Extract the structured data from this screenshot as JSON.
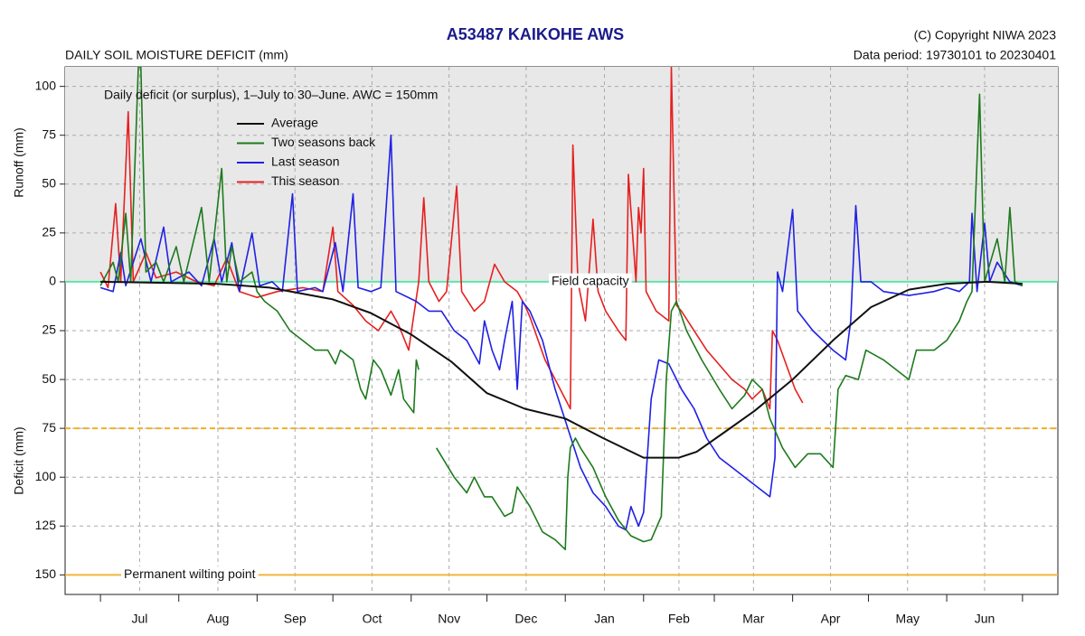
{
  "chart_data": {
    "type": "line",
    "title": "A53487  KAIKOHE AWS",
    "subtitle": "DAILY SOIL MOISTURE DEFICIT (mm)",
    "copyright": "(C) Copyright NIWA  2023",
    "data_period": "Data period:  19730101  to  20230401",
    "annotation": "Daily deficit (or surplus), 1–July to 30–June.  AWC = 150mm",
    "y_label_top": "Runoff (mm)",
    "y_label_bottom": "Deficit (mm)",
    "categories": [
      "Jul",
      "Aug",
      "Sep",
      "Oct",
      "Nov",
      "Dec",
      "Jan",
      "Feb",
      "Mar",
      "Apr",
      "May",
      "Jun"
    ],
    "xticks": [
      0,
      31,
      62,
      92,
      123,
      153,
      184,
      215,
      243,
      274,
      304,
      335,
      365
    ],
    "xlim": [
      -14,
      379
    ],
    "ylim": [
      -160,
      110
    ],
    "yticks": [
      100,
      75,
      50,
      25,
      0,
      {
        "value": -25,
        "label": "25"
      },
      {
        "value": -50,
        "label": "50"
      },
      {
        "value": -75,
        "label": "75"
      },
      {
        "value": -100,
        "label": "100"
      },
      {
        "value": -125,
        "label": "125"
      },
      {
        "value": -150,
        "label": "150"
      }
    ],
    "grid": true,
    "reference_lines": [
      {
        "value": 0,
        "label": "Field capacity",
        "color": "#5ee6a8"
      },
      {
        "value": -75,
        "color": "#f0b020",
        "dashed": true
      },
      {
        "value": -150,
        "label": "Permanent wilting point",
        "color": "#f2b53a"
      }
    ],
    "series": [
      {
        "name": "Average",
        "color": "#111111",
        "x": [
          0,
          46,
          67,
          92,
          107,
          123,
          139,
          153,
          168,
          184,
          199,
          215,
          229,
          236,
          247,
          259,
          274,
          290,
          305,
          320,
          335,
          351,
          365
        ],
        "values": [
          0,
          -1,
          -3,
          -9,
          -16,
          -27,
          -41,
          -57,
          -65,
          -70,
          -80,
          -90,
          -90,
          -87,
          -77,
          -66,
          -50,
          -30,
          -13,
          -4,
          -1,
          0,
          -1
        ]
      },
      {
        "name": "Two seasons back",
        "color": "#1d7a1d",
        "x": [
          0,
          5,
          7,
          10,
          12,
          15,
          16,
          18,
          22,
          25,
          30,
          33,
          40,
          43,
          48,
          50,
          52,
          55,
          60,
          62,
          65,
          70,
          75,
          80,
          85,
          90,
          93,
          95,
          100,
          103,
          105,
          108,
          111,
          115,
          118,
          120,
          124,
          125,
          126,
          128,
          133,
          140,
          145,
          148,
          152,
          155,
          160,
          163,
          165,
          170,
          175,
          180,
          184,
          185,
          186,
          188,
          190,
          195,
          200,
          205,
          210,
          215,
          218,
          222,
          224,
          226,
          228,
          232,
          238,
          245,
          250,
          255,
          258,
          262,
          265,
          270,
          275,
          280,
          285,
          290,
          292,
          295,
          300,
          303,
          310,
          315,
          320,
          323,
          330,
          335,
          340,
          343,
          345,
          348,
          350,
          355,
          358,
          360,
          362,
          365
        ],
        "values": [
          -2,
          10,
          0,
          35,
          0,
          110,
          110,
          5,
          10,
          0,
          18,
          0,
          38,
          0,
          58,
          0,
          18,
          0,
          5,
          -5,
          -10,
          -15,
          -25,
          -30,
          -35,
          -35,
          -42,
          -35,
          -40,
          -55,
          -60,
          -40,
          -45,
          -58,
          -45,
          -60,
          -67,
          -40,
          -45,
          null,
          -85,
          -100,
          -108,
          -100,
          -110,
          -110,
          -120,
          -118,
          -105,
          -115,
          -128,
          -132,
          -137,
          -100,
          -85,
          -80,
          -85,
          -95,
          -110,
          -122,
          -130,
          -133,
          -132,
          -120,
          -50,
          -15,
          -10,
          -25,
          -40,
          -55,
          -65,
          -58,
          -50,
          -55,
          -70,
          -85,
          -95,
          -88,
          -88,
          -95,
          -55,
          -48,
          -50,
          -35,
          -40,
          -45,
          -50,
          -35,
          -35,
          -30,
          -20,
          -10,
          -5,
          96,
          0,
          22,
          0,
          38,
          0,
          -2
        ]
      },
      {
        "name": "Last season",
        "color": "#2020e6",
        "x": [
          0,
          5,
          8,
          10,
          16,
          20,
          25,
          28,
          35,
          40,
          45,
          48,
          52,
          55,
          60,
          63,
          68,
          72,
          76,
          78,
          85,
          88,
          93,
          96,
          100,
          102,
          107,
          111,
          115,
          117,
          125,
          130,
          135,
          140,
          145,
          150,
          152,
          155,
          158,
          160,
          163,
          165,
          167,
          170,
          175,
          180,
          185,
          190,
          195,
          200,
          205,
          208,
          210,
          213,
          215,
          218,
          221,
          225,
          230,
          235,
          240,
          245,
          250,
          255,
          260,
          265,
          267,
          268,
          270,
          274,
          276,
          282,
          290,
          295,
          297,
          299,
          301,
          305,
          310,
          320,
          330,
          335,
          340,
          344,
          345,
          347,
          350,
          352,
          355,
          360,
          365
        ],
        "values": [
          -3,
          -5,
          15,
          -2,
          22,
          0,
          28,
          0,
          5,
          -2,
          22,
          0,
          20,
          -5,
          25,
          -2,
          0,
          -5,
          45,
          -5,
          -3,
          -5,
          20,
          -5,
          45,
          -3,
          -5,
          -3,
          75,
          -5,
          -10,
          -15,
          -15,
          -25,
          -30,
          -42,
          -20,
          -35,
          -45,
          -30,
          -10,
          -55,
          -10,
          -15,
          -30,
          -55,
          -75,
          -95,
          -108,
          -115,
          -125,
          -127,
          -115,
          -125,
          -118,
          -60,
          -40,
          -42,
          -55,
          -65,
          -80,
          -90,
          -95,
          -100,
          -105,
          -110,
          -90,
          5,
          -5,
          37,
          -15,
          -25,
          -35,
          -40,
          -20,
          39,
          0,
          0,
          -5,
          -7,
          -5,
          -3,
          -5,
          0,
          35,
          -5,
          30,
          0,
          10,
          0,
          -2
        ]
      },
      {
        "name": "This season",
        "color": "#e62020",
        "x": [
          0,
          3,
          6,
          8,
          11,
          13,
          18,
          22,
          30,
          38,
          45,
          50,
          55,
          62,
          70,
          80,
          88,
          92,
          94,
          100,
          105,
          110,
          115,
          118,
          122,
          126,
          128,
          130,
          134,
          137,
          141,
          143,
          148,
          152,
          156,
          160,
          165,
          168,
          170,
          176,
          182,
          186,
          187,
          189,
          192,
          195,
          197,
          200,
          205,
          208,
          209,
          212,
          213,
          214,
          215,
          216,
          220,
          225,
          226,
          228,
          230,
          240,
          250,
          255,
          258,
          262,
          265,
          266,
          268,
          275,
          278
        ],
        "values": [
          5,
          -3,
          40,
          0,
          87,
          0,
          15,
          2,
          5,
          0,
          -2,
          12,
          -5,
          -8,
          -5,
          -3,
          -5,
          28,
          -5,
          -12,
          -20,
          -25,
          -15,
          -22,
          -35,
          0,
          43,
          0,
          -10,
          -5,
          49,
          -5,
          -15,
          -10,
          9,
          0,
          -5,
          -12,
          -18,
          -40,
          -55,
          -65,
          70,
          0,
          -20,
          32,
          -5,
          -15,
          -25,
          -30,
          55,
          0,
          38,
          25,
          58,
          -5,
          -15,
          -20,
          110,
          -12,
          -15,
          -35,
          -50,
          -55,
          -60,
          -55,
          -65,
          -25,
          -30,
          -55,
          -62
        ]
      }
    ]
  }
}
